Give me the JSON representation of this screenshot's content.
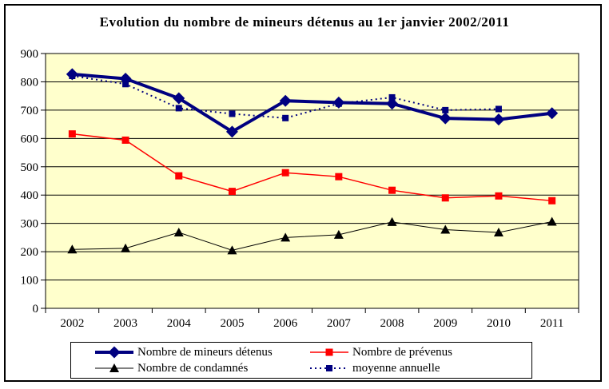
{
  "window": {
    "bg_color": "#ffffff",
    "frame_color": "#000000"
  },
  "chart_data": {
    "type": "line",
    "title": "Evolution du nombre de mineurs détenus au 1er janvier 2002/2011",
    "categories": [
      "2002",
      "2003",
      "2004",
      "2005",
      "2006",
      "2007",
      "2008",
      "2009",
      "2010",
      "2011"
    ],
    "xlabel": "",
    "ylabel": "",
    "ylim": [
      0,
      900
    ],
    "ytick_step": 100,
    "grid": true,
    "legend_position": "bottom",
    "plot_bg": "#ffffcc",
    "grid_color": "#000000",
    "axis_color": "#000000",
    "series": [
      {
        "name": "Nombre de mineurs détenus",
        "color": "#000080",
        "marker": "diamond",
        "line_width": 4,
        "dash": "solid",
        "values": [
          827,
          811,
          742,
          624,
          733,
          727,
          723,
          671,
          667,
          689
        ]
      },
      {
        "name": "Nombre de prévenus",
        "color": "#ff0000",
        "marker": "square",
        "line_width": 1.5,
        "dash": "solid",
        "values": [
          616,
          594,
          468,
          413,
          479,
          465,
          417,
          390,
          397,
          380
        ]
      },
      {
        "name": "Nombre de condamnés",
        "color": "#000000",
        "marker": "triangle",
        "line_width": 1,
        "dash": "solid",
        "values": [
          208,
          212,
          268,
          205,
          250,
          260,
          305,
          278,
          268,
          306
        ]
      },
      {
        "name": "moyenne annuelle",
        "color": "#000080",
        "marker": "square-small",
        "line_width": 2,
        "dash": "dotted",
        "values": [
          821,
          792,
          707,
          687,
          672,
          723,
          745,
          700,
          704,
          null
        ]
      }
    ]
  }
}
